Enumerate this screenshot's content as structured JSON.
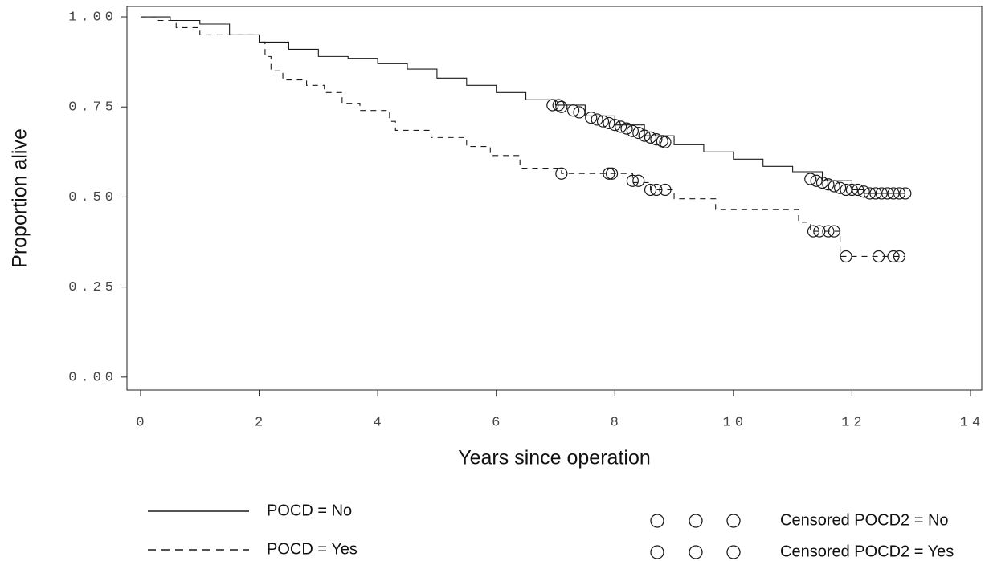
{
  "chart_data": {
    "type": "line",
    "ylabel": "Proportion alive",
    "xlabel": "Years since operation",
    "xlim": [
      -0.23,
      14.19
    ],
    "ylim": [
      -0.036,
      1.029
    ],
    "xticks": [
      0,
      2,
      4,
      6,
      8,
      10,
      12,
      14
    ],
    "yticks": [
      {
        "value": 0,
        "label": "0.00"
      },
      {
        "value": 0.25,
        "label": "0.25"
      },
      {
        "value": 0.5,
        "label": "0.50"
      },
      {
        "value": 0.75,
        "label": "0.75"
      },
      {
        "value": 1,
        "label": "1.00"
      }
    ],
    "series": [
      {
        "name": "POCD = No",
        "style": "solid",
        "color": "#1a1a1a",
        "x": [
          0,
          0.5,
          1,
          1.5,
          2,
          2.5,
          3,
          3.5,
          4,
          4.5,
          5,
          5.5,
          6,
          6.5,
          7,
          7.5,
          8,
          8.5,
          9,
          9.5,
          10,
          10.5,
          11,
          11.5,
          12,
          12.2,
          12.9
        ],
        "values": [
          1.0,
          0.99,
          0.98,
          0.95,
          0.93,
          0.91,
          0.89,
          0.885,
          0.87,
          0.855,
          0.83,
          0.81,
          0.79,
          0.77,
          0.755,
          0.725,
          0.7,
          0.67,
          0.645,
          0.625,
          0.605,
          0.585,
          0.57,
          0.545,
          0.52,
          0.51,
          0.51
        ]
      },
      {
        "name": "POCD = Yes",
        "style": "dashed",
        "color": "#1a1a1a",
        "x": [
          0,
          0.3,
          0.6,
          1,
          2,
          2.1,
          2.2,
          2.4,
          2.8,
          3.1,
          3.4,
          3.7,
          4.2,
          4.3,
          4.9,
          5.5,
          5.9,
          6.4,
          7.1,
          8.3,
          8.6,
          9,
          9.7,
          11.1,
          11.3,
          11.8,
          12.9
        ],
        "values": [
          1.0,
          0.99,
          0.97,
          0.95,
          0.93,
          0.89,
          0.85,
          0.825,
          0.81,
          0.79,
          0.76,
          0.74,
          0.71,
          0.685,
          0.665,
          0.64,
          0.615,
          0.58,
          0.565,
          0.54,
          0.52,
          0.495,
          0.465,
          0.43,
          0.405,
          0.335,
          0.335
        ]
      },
      {
        "name": "Censored POCD2 = No",
        "style": "circle",
        "color": "#1a1a1a",
        "x": [
          6.95,
          7.05,
          7.1,
          7.3,
          7.4,
          7.6,
          7.7,
          7.8,
          7.9,
          8.0,
          8.1,
          8.2,
          8.3,
          8.4,
          8.5,
          8.6,
          8.7,
          8.8,
          8.85,
          11.3,
          11.4,
          11.5,
          11.6,
          11.7,
          11.8,
          11.9,
          12.0,
          12.1,
          12.2,
          12.3,
          12.4,
          12.5,
          12.6,
          12.7,
          12.8,
          12.9
        ],
        "values": [
          0.755,
          0.755,
          0.75,
          0.74,
          0.735,
          0.72,
          0.715,
          0.71,
          0.705,
          0.7,
          0.695,
          0.69,
          0.683,
          0.678,
          0.67,
          0.665,
          0.66,
          0.655,
          0.652,
          0.55,
          0.545,
          0.54,
          0.535,
          0.53,
          0.525,
          0.52,
          0.52,
          0.52,
          0.515,
          0.51,
          0.51,
          0.51,
          0.51,
          0.51,
          0.51,
          0.51
        ]
      },
      {
        "name": "Censored POCD2 = Yes",
        "style": "circle",
        "color": "#1a1a1a",
        "x": [
          7.1,
          7.9,
          7.95,
          8.3,
          8.4,
          8.6,
          8.7,
          8.85,
          11.35,
          11.45,
          11.6,
          11.7,
          11.9,
          12.45,
          12.7,
          12.8
        ],
        "values": [
          0.565,
          0.565,
          0.565,
          0.545,
          0.545,
          0.52,
          0.52,
          0.52,
          0.405,
          0.405,
          0.405,
          0.405,
          0.335,
          0.335,
          0.335,
          0.335
        ]
      }
    ]
  }
}
